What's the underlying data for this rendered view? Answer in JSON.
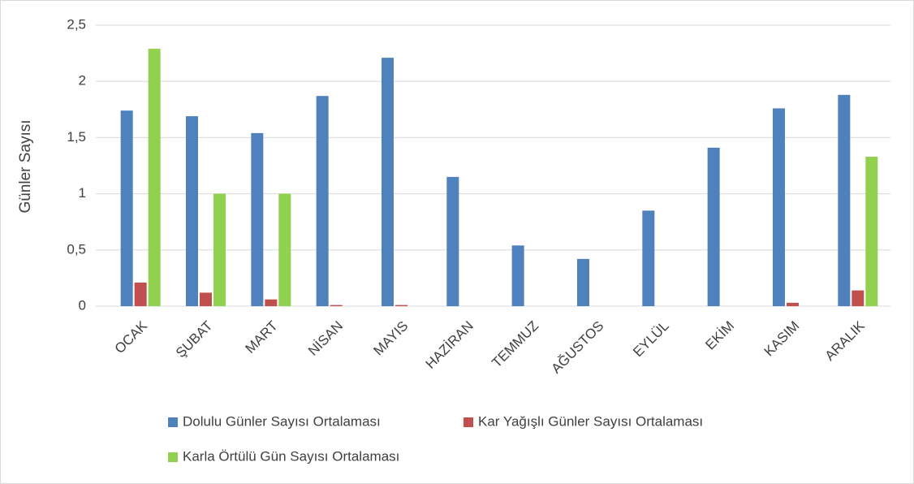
{
  "chart_data": {
    "type": "bar",
    "y_label": "Günler Sayısı",
    "categories": [
      "OCAK",
      "ŞUBAT",
      "MART",
      "NİSAN",
      "MAYIS",
      "HAZİRAN",
      "TEMMUZ",
      "AĞUSTOS",
      "EYLÜL",
      "EKİM",
      "KASIM",
      "ARALIK"
    ],
    "series": [
      {
        "name": "Dolulu Günler Sayısı Ortalaması",
        "color": "#4f81bd",
        "values": [
          1.74,
          1.69,
          1.54,
          1.87,
          2.21,
          1.15,
          0.54,
          0.42,
          0.85,
          1.41,
          1.76,
          1.88
        ]
      },
      {
        "name": "Kar Yağışlı Günler Sayısı Ortalaması",
        "color": "#c0504d",
        "values": [
          0.21,
          0.12,
          0.06,
          0.01,
          0.01,
          0,
          0,
          0,
          0,
          0,
          0.03,
          0.14
        ]
      },
      {
        "name": "Karla Örtülü Gün Sayısı Ortalaması",
        "color": "#92d050",
        "values": [
          2.29,
          1.0,
          1.0,
          0,
          0,
          0,
          0,
          0,
          0,
          0,
          0,
          1.33
        ]
      }
    ],
    "ylim": [
      0,
      2.5
    ],
    "yticks": [
      0,
      {
        "value": 0.5,
        "label": "0,5"
      },
      1,
      {
        "value": 1.5,
        "label": "1,5"
      },
      2,
      {
        "value": 2.5,
        "label": "2,5"
      }
    ],
    "grid": true
  }
}
